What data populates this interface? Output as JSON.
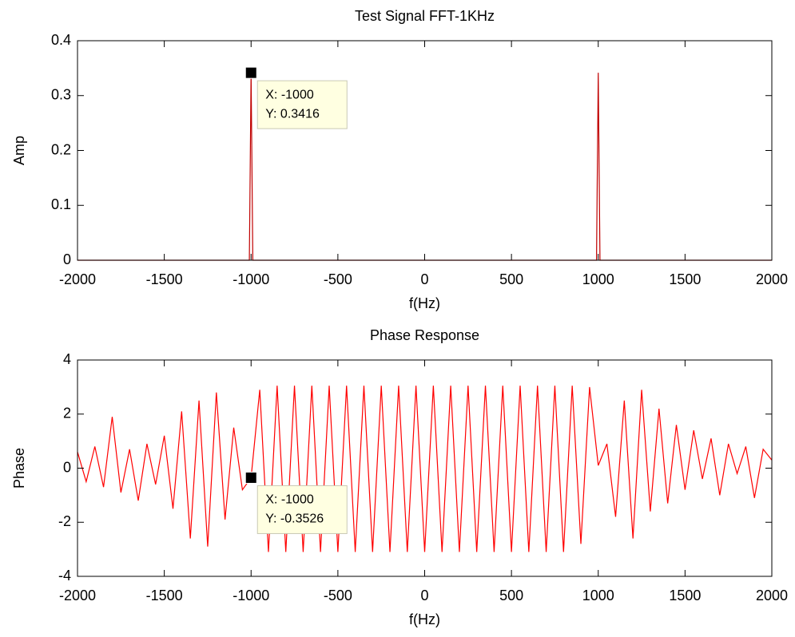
{
  "chart_data": [
    {
      "type": "line",
      "title": "Test Signal FFT-1KHz",
      "xlabel": "f(Hz)",
      "ylabel": "Amp",
      "x": [
        -2000,
        -1010,
        -1000,
        -990,
        990,
        1000,
        1010,
        2000
      ],
      "series": [
        {
          "color": "#c00000",
          "values": [
            0,
            0,
            0.3416,
            0,
            0,
            0.3416,
            0,
            0
          ]
        }
      ],
      "xlim": [
        -2000,
        2000
      ],
      "xticks": [
        -2000,
        -1500,
        -1000,
        -500,
        0,
        500,
        1000,
        1500,
        2000
      ],
      "ylim": [
        0,
        0.4
      ],
      "yticks": [
        0,
        0.1,
        0.2,
        0.3,
        0.4
      ],
      "annotations": [
        {
          "x": -1000,
          "y": 0.3416,
          "lines": [
            "X: -1000",
            "Y: 0.3416"
          ]
        }
      ]
    },
    {
      "type": "line",
      "title": "Phase Response",
      "xlabel": "f(Hz)",
      "ylabel": "Phase",
      "x": [
        -2000,
        -1950,
        -1900,
        -1850,
        -1800,
        -1750,
        -1700,
        -1650,
        -1600,
        -1550,
        -1500,
        -1450,
        -1400,
        -1350,
        -1300,
        -1250,
        -1200,
        -1150,
        -1100,
        -1050,
        -1000,
        -950,
        -900,
        -850,
        -800,
        -750,
        -700,
        -650,
        -600,
        -550,
        -500,
        -450,
        -400,
        -350,
        -300,
        -250,
        -200,
        -150,
        -100,
        -50,
        0,
        50,
        100,
        150,
        200,
        250,
        300,
        350,
        400,
        450,
        500,
        550,
        600,
        650,
        700,
        750,
        800,
        850,
        900,
        950,
        1000,
        1050,
        1100,
        1150,
        1200,
        1250,
        1300,
        1350,
        1400,
        1450,
        1500,
        1550,
        1600,
        1650,
        1700,
        1750,
        1800,
        1850,
        1900,
        1950,
        2000
      ],
      "series": [
        {
          "color": "#ff0000",
          "values": [
            0.6,
            -0.5,
            0.8,
            -0.7,
            1.9,
            -0.9,
            0.7,
            -1.2,
            0.9,
            -0.6,
            1.2,
            -1.5,
            2.1,
            -2.6,
            2.5,
            -2.9,
            2.8,
            -1.9,
            1.5,
            -0.8,
            -0.3526,
            2.9,
            -3.1,
            3.05,
            -3.1,
            3.05,
            -3.1,
            3.05,
            -3.1,
            3.05,
            -3.1,
            3.05,
            -3.1,
            3.05,
            -3.1,
            3.05,
            -3.1,
            3.05,
            -3.1,
            3.05,
            -3.1,
            3.05,
            -3.1,
            3.05,
            -3.1,
            3.05,
            -3.1,
            3.05,
            -3.1,
            3.05,
            -3.1,
            3.05,
            -3.1,
            3.05,
            -3.1,
            3.05,
            -3.1,
            3.05,
            -2.8,
            3.0,
            0.1,
            0.9,
            -1.8,
            2.5,
            -2.6,
            2.9,
            -1.6,
            2.2,
            -1.3,
            1.6,
            -0.8,
            1.4,
            -0.4,
            1.1,
            -1.0,
            0.9,
            -0.2,
            0.8,
            -1.1,
            0.7,
            0.3
          ]
        }
      ],
      "xlim": [
        -2000,
        2000
      ],
      "xticks": [
        -2000,
        -1500,
        -1000,
        -500,
        0,
        500,
        1000,
        1500,
        2000
      ],
      "ylim": [
        -4,
        4
      ],
      "yticks": [
        -4,
        -2,
        0,
        2,
        4
      ],
      "annotations": [
        {
          "x": -1000,
          "y": -0.3526,
          "lines": [
            "X: -1000",
            "Y: -0.3526"
          ]
        }
      ]
    }
  ]
}
